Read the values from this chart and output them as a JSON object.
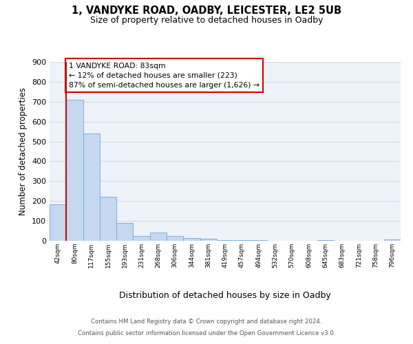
{
  "title": "1, VANDYKE ROAD, OADBY, LEICESTER, LE2 5UB",
  "subtitle": "Size of property relative to detached houses in Oadby",
  "xlabel": "Distribution of detached houses by size in Oadby",
  "ylabel": "Number of detached properties",
  "bin_labels": [
    "42sqm",
    "80sqm",
    "117sqm",
    "155sqm",
    "193sqm",
    "231sqm",
    "268sqm",
    "306sqm",
    "344sqm",
    "381sqm",
    "419sqm",
    "457sqm",
    "494sqm",
    "532sqm",
    "570sqm",
    "608sqm",
    "645sqm",
    "683sqm",
    "721sqm",
    "758sqm",
    "796sqm"
  ],
  "bar_heights": [
    185,
    710,
    540,
    220,
    90,
    25,
    40,
    25,
    13,
    10,
    5,
    3,
    2,
    1,
    0,
    0,
    2,
    0,
    0,
    0,
    8
  ],
  "bar_color": "#c5d8f0",
  "bar_edge_color": "#6fa8d6",
  "vertical_line_x": 1,
  "vertical_line_color": "#cc0000",
  "ylim": [
    0,
    900
  ],
  "yticks": [
    0,
    100,
    200,
    300,
    400,
    500,
    600,
    700,
    800,
    900
  ],
  "annotation_title": "1 VANDYKE ROAD: 83sqm",
  "annotation_line1": "← 12% of detached houses are smaller (223)",
  "annotation_line2": "87% of semi-detached houses are larger (1,626) →",
  "annotation_box_color": "#cc0000",
  "footer_line1": "Contains HM Land Registry data © Crown copyright and database right 2024.",
  "footer_line2": "Contains public sector information licensed under the Open Government Licence v3.0.",
  "grid_color": "#d0dce8",
  "background_color": "#eef2f9"
}
